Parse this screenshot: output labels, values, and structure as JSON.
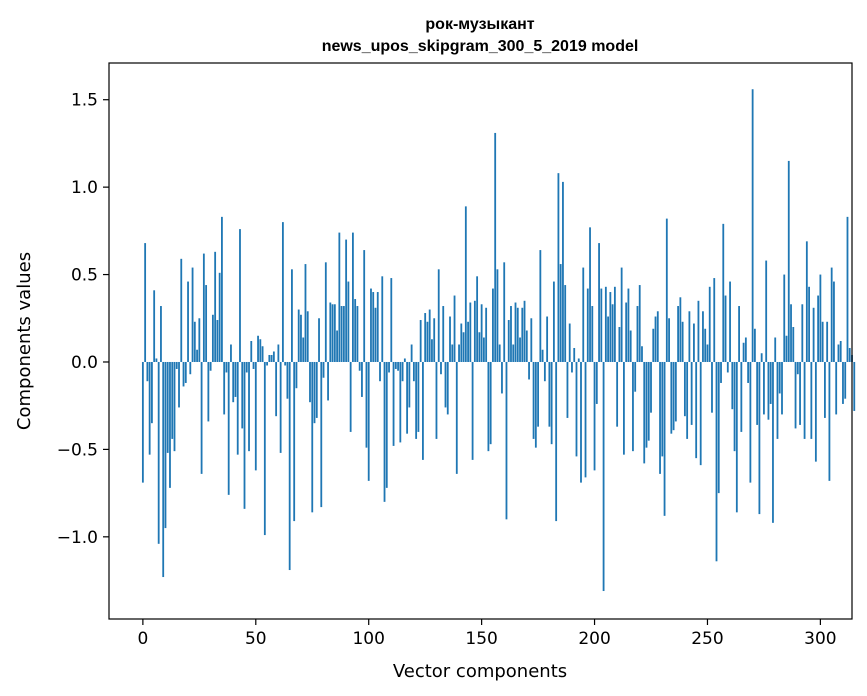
{
  "chart_data": {
    "type": "bar",
    "title": "рок-музыкант",
    "subtitle": "news_upos_skipgram_300_5_2019 model",
    "xlabel": "Vector components",
    "ylabel": "Components values",
    "xlim": [
      -15,
      314
    ],
    "ylim": [
      -1.47,
      1.71
    ],
    "xticks": [
      0,
      50,
      100,
      150,
      200,
      250,
      300
    ],
    "xtick_labels": [
      "0",
      "50",
      "100",
      "150",
      "200",
      "250",
      "300"
    ],
    "yticks": [
      -1.0,
      -0.5,
      0.0,
      0.5,
      1.0,
      1.5
    ],
    "ytick_labels": [
      "−1.0",
      "−0.5",
      "0.0",
      "0.5",
      "1.0",
      "1.5"
    ],
    "bar_color": "#1f77b4",
    "grid": false,
    "x_start": 0,
    "values": [
      -0.69,
      0.68,
      -0.11,
      -0.53,
      -0.35,
      0.41,
      0.02,
      -1.04,
      0.32,
      -1.23,
      -0.95,
      -0.52,
      -0.72,
      -0.44,
      -0.51,
      -0.04,
      -0.26,
      0.59,
      -0.14,
      -0.12,
      0.46,
      -0.07,
      0.54,
      0.23,
      0.07,
      0.25,
      -0.64,
      0.62,
      0.44,
      -0.34,
      -0.05,
      0.27,
      0.63,
      0.24,
      0.51,
      0.83,
      -0.3,
      -0.06,
      -0.76,
      0.1,
      -0.23,
      -0.2,
      -0.53,
      0.76,
      -0.38,
      -0.84,
      -0.06,
      -0.51,
      0.12,
      -0.04,
      -0.62,
      0.15,
      0.13,
      0.09,
      -0.99,
      -0.02,
      0.04,
      0.04,
      0.06,
      -0.31,
      0.1,
      -0.52,
      0.8,
      -0.02,
      -0.21,
      -1.19,
      0.53,
      -0.91,
      -0.15,
      0.3,
      0.27,
      0.14,
      0.56,
      0.29,
      -0.23,
      -0.86,
      -0.35,
      -0.32,
      0.25,
      -0.83,
      -0.09,
      0.57,
      -0.22,
      0.34,
      0.33,
      0.33,
      0.18,
      0.74,
      0.32,
      0.32,
      0.7,
      0.46,
      -0.4,
      0.74,
      0.36,
      0.32,
      -0.05,
      -0.2,
      0.64,
      -0.49,
      -0.68,
      0.42,
      0.4,
      0.31,
      0.4,
      -0.11,
      0.49,
      -0.8,
      -0.72,
      -0.06,
      0.48,
      -0.48,
      -0.04,
      -0.05,
      -0.46,
      -0.11,
      0.02,
      -0.41,
      -0.26,
      0.1,
      -0.11,
      -0.44,
      -0.4,
      0.24,
      -0.56,
      0.28,
      0.23,
      0.3,
      0.13,
      0.25,
      -0.44,
      0.53,
      -0.07,
      0.32,
      -0.26,
      -0.3,
      0.26,
      0.1,
      0.38,
      -0.64,
      0.1,
      0.22,
      0.17,
      0.89,
      0.23,
      0.34,
      -0.56,
      0.35,
      0.49,
      0.17,
      0.33,
      0.14,
      0.31,
      -0.51,
      -0.47,
      0.42,
      1.31,
      0.53,
      0.1,
      -0.18,
      0.57,
      -0.9,
      0.24,
      0.32,
      0.1,
      0.34,
      0.31,
      0.14,
      0.31,
      0.35,
      0.18,
      -0.1,
      0.25,
      -0.44,
      -0.49,
      -0.37,
      0.64,
      0.07,
      -0.11,
      0.26,
      -0.37,
      -0.47,
      0.46,
      -0.91,
      1.08,
      0.56,
      1.03,
      0.44,
      -0.32,
      0.22,
      -0.06,
      0.08,
      -0.54,
      0.02,
      -0.69,
      0.54,
      -0.66,
      0.42,
      0.77,
      0.32,
      -0.62,
      -0.24,
      0.68,
      0.42,
      -1.31,
      0.43,
      0.26,
      0.4,
      0.33,
      0.43,
      -0.37,
      0.2,
      0.54,
      -0.53,
      0.34,
      0.42,
      0.18,
      -0.51,
      -0.17,
      0.32,
      0.44,
      0.09,
      -0.58,
      -0.49,
      -0.45,
      -0.29,
      0.19,
      0.26,
      0.29,
      -0.64,
      -0.54,
      -0.88,
      0.82,
      0.25,
      -0.41,
      -0.39,
      -0.34,
      0.32,
      0.37,
      0.23,
      -0.31,
      -0.44,
      0.29,
      -0.36,
      0.22,
      -0.55,
      0.35,
      -0.59,
      0.29,
      0.19,
      0.1,
      0.43,
      -0.29,
      0.48,
      -1.14,
      -0.75,
      -0.12,
      0.79,
      0.38,
      -0.06,
      0.46,
      -0.27,
      -0.51,
      -0.86,
      0.32,
      -0.4,
      0.11,
      0.14,
      -0.12,
      -0.69,
      1.56,
      0.19,
      -0.36,
      -0.87,
      0.05,
      -0.3,
      0.58,
      -0.33,
      -0.24,
      -0.92,
      0.14,
      -0.44,
      -0.18,
      -0.3,
      0.5,
      0.15,
      1.15,
      0.33,
      0.2,
      -0.38,
      -0.07,
      -0.36,
      0.33,
      -0.44,
      0.69,
      0.43,
      -0.44,
      0.31,
      -0.57,
      0.38,
      0.5,
      0.23,
      -0.32,
      0.23,
      -0.68,
      0.54,
      0.46,
      -0.3,
      0.1,
      0.12,
      -0.24,
      -0.21,
      0.83,
      0.08,
      0.04,
      -0.28
    ]
  }
}
